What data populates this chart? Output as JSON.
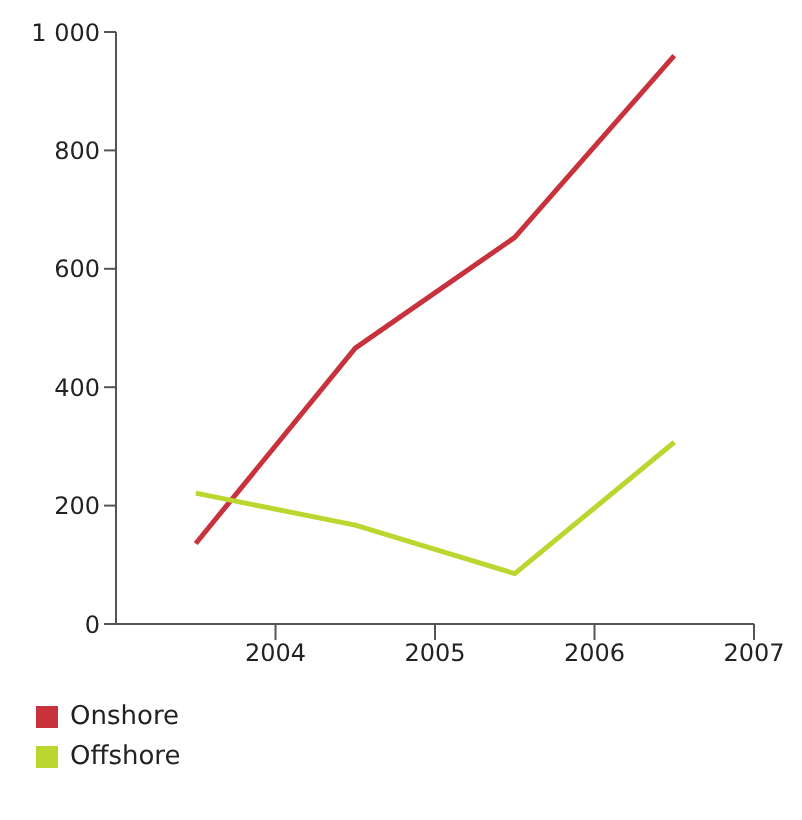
{
  "chart_data": {
    "type": "line",
    "x": [
      2003.5,
      2004.5,
      2005.5,
      2006.5
    ],
    "series": [
      {
        "name": "Onshore",
        "color": "#c8323c",
        "values": [
          136,
          466,
          653,
          960
        ]
      },
      {
        "name": "Offshore",
        "color": "#bcd630",
        "values": [
          221,
          167,
          85,
          307
        ]
      }
    ],
    "xlim": [
      2003,
      2007
    ],
    "xticks": [
      2004,
      2005,
      2006,
      2007
    ],
    "ylim": [
      0,
      1000
    ],
    "yticks": [
      0,
      200,
      400,
      600,
      800,
      {
        "value": 1000,
        "label": "1 000"
      }
    ],
    "grid": false,
    "legend": "bottom left",
    "marker": "none",
    "line_style": "solid"
  }
}
